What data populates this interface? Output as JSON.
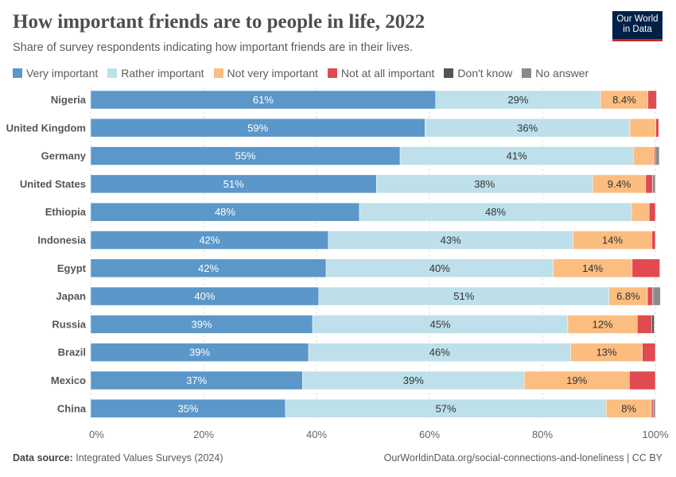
{
  "header": {
    "title": "How important friends are to people in life, 2022",
    "subtitle": "Share of survey respondents indicating how important friends are in their lives.",
    "logo": "Our World in Data"
  },
  "footer": {
    "source_label": "Data source:",
    "source": "Integrated Values Surveys (2024)",
    "link": "OurWorldinData.org/social-connections-and-loneliness | CC BY"
  },
  "chart_data": {
    "type": "bar",
    "orientation": "horizontal",
    "stacked": true,
    "title": "How important friends are to people in life, 2022",
    "subtitle": "Share of survey respondents indicating how important friends are in their lives.",
    "xlim": [
      0,
      100
    ],
    "x_ticks": [
      "0%",
      "20%",
      "40%",
      "60%",
      "80%",
      "100%"
    ],
    "grid": "vertical dashed",
    "legend": "top",
    "categories": [
      "Nigeria",
      "United Kingdom",
      "Germany",
      "United States",
      "Ethiopia",
      "Indonesia",
      "Egypt",
      "Japan",
      "Russia",
      "Brazil",
      "Mexico",
      "China"
    ],
    "series": [
      {
        "name": "Very important",
        "color": "#5b97c9",
        "values": [
          61.1,
          59.2,
          54.8,
          50.6,
          47.6,
          42.1,
          41.7,
          40.4,
          39.3,
          38.6,
          37.5,
          34.5
        ],
        "labels": [
          "61%",
          "59%",
          "55%",
          "51%",
          "48%",
          "42%",
          "42%",
          "40%",
          "39%",
          "39%",
          "37%",
          "35%"
        ]
      },
      {
        "name": "Rather important",
        "color": "#bde0ea",
        "values": [
          29.2,
          36.3,
          41.3,
          38.3,
          48.2,
          43.3,
          40.2,
          51.4,
          45.2,
          46.4,
          39.3,
          56.8
        ],
        "labels": [
          "29%",
          "36%",
          "41%",
          "38%",
          "48%",
          "43%",
          "40%",
          "51%",
          "45%",
          "46%",
          "39%",
          "57%"
        ]
      },
      {
        "name": "Not very important",
        "color": "#fbbd80",
        "values": [
          8.4,
          4.6,
          3.7,
          9.4,
          3.1,
          14,
          14,
          6.8,
          12.3,
          12.7,
          18.6,
          8
        ],
        "labels": [
          "8.4%",
          "",
          "",
          "9.4%",
          "",
          "14%",
          "14%",
          "6.8%",
          "12%",
          "13%",
          "19%",
          "8%"
        ]
      },
      {
        "name": "Not at all important",
        "color": "#e04a50",
        "values": [
          1.5,
          0.5,
          0.3,
          1.2,
          1.1,
          0.6,
          4.9,
          0.9,
          2.6,
          2.3,
          4.6,
          0.3
        ]
      },
      {
        "name": "Don't know",
        "color": "#555555",
        "values": [
          0,
          0,
          0,
          0,
          0,
          0,
          0,
          0.2,
          0.4,
          0,
          0,
          0
        ]
      },
      {
        "name": "No answer",
        "color": "#8a8a8a",
        "values": [
          0.1,
          0,
          0.6,
          0.5,
          0,
          0,
          0,
          1.2,
          0,
          0,
          0,
          0.4
        ]
      }
    ]
  }
}
